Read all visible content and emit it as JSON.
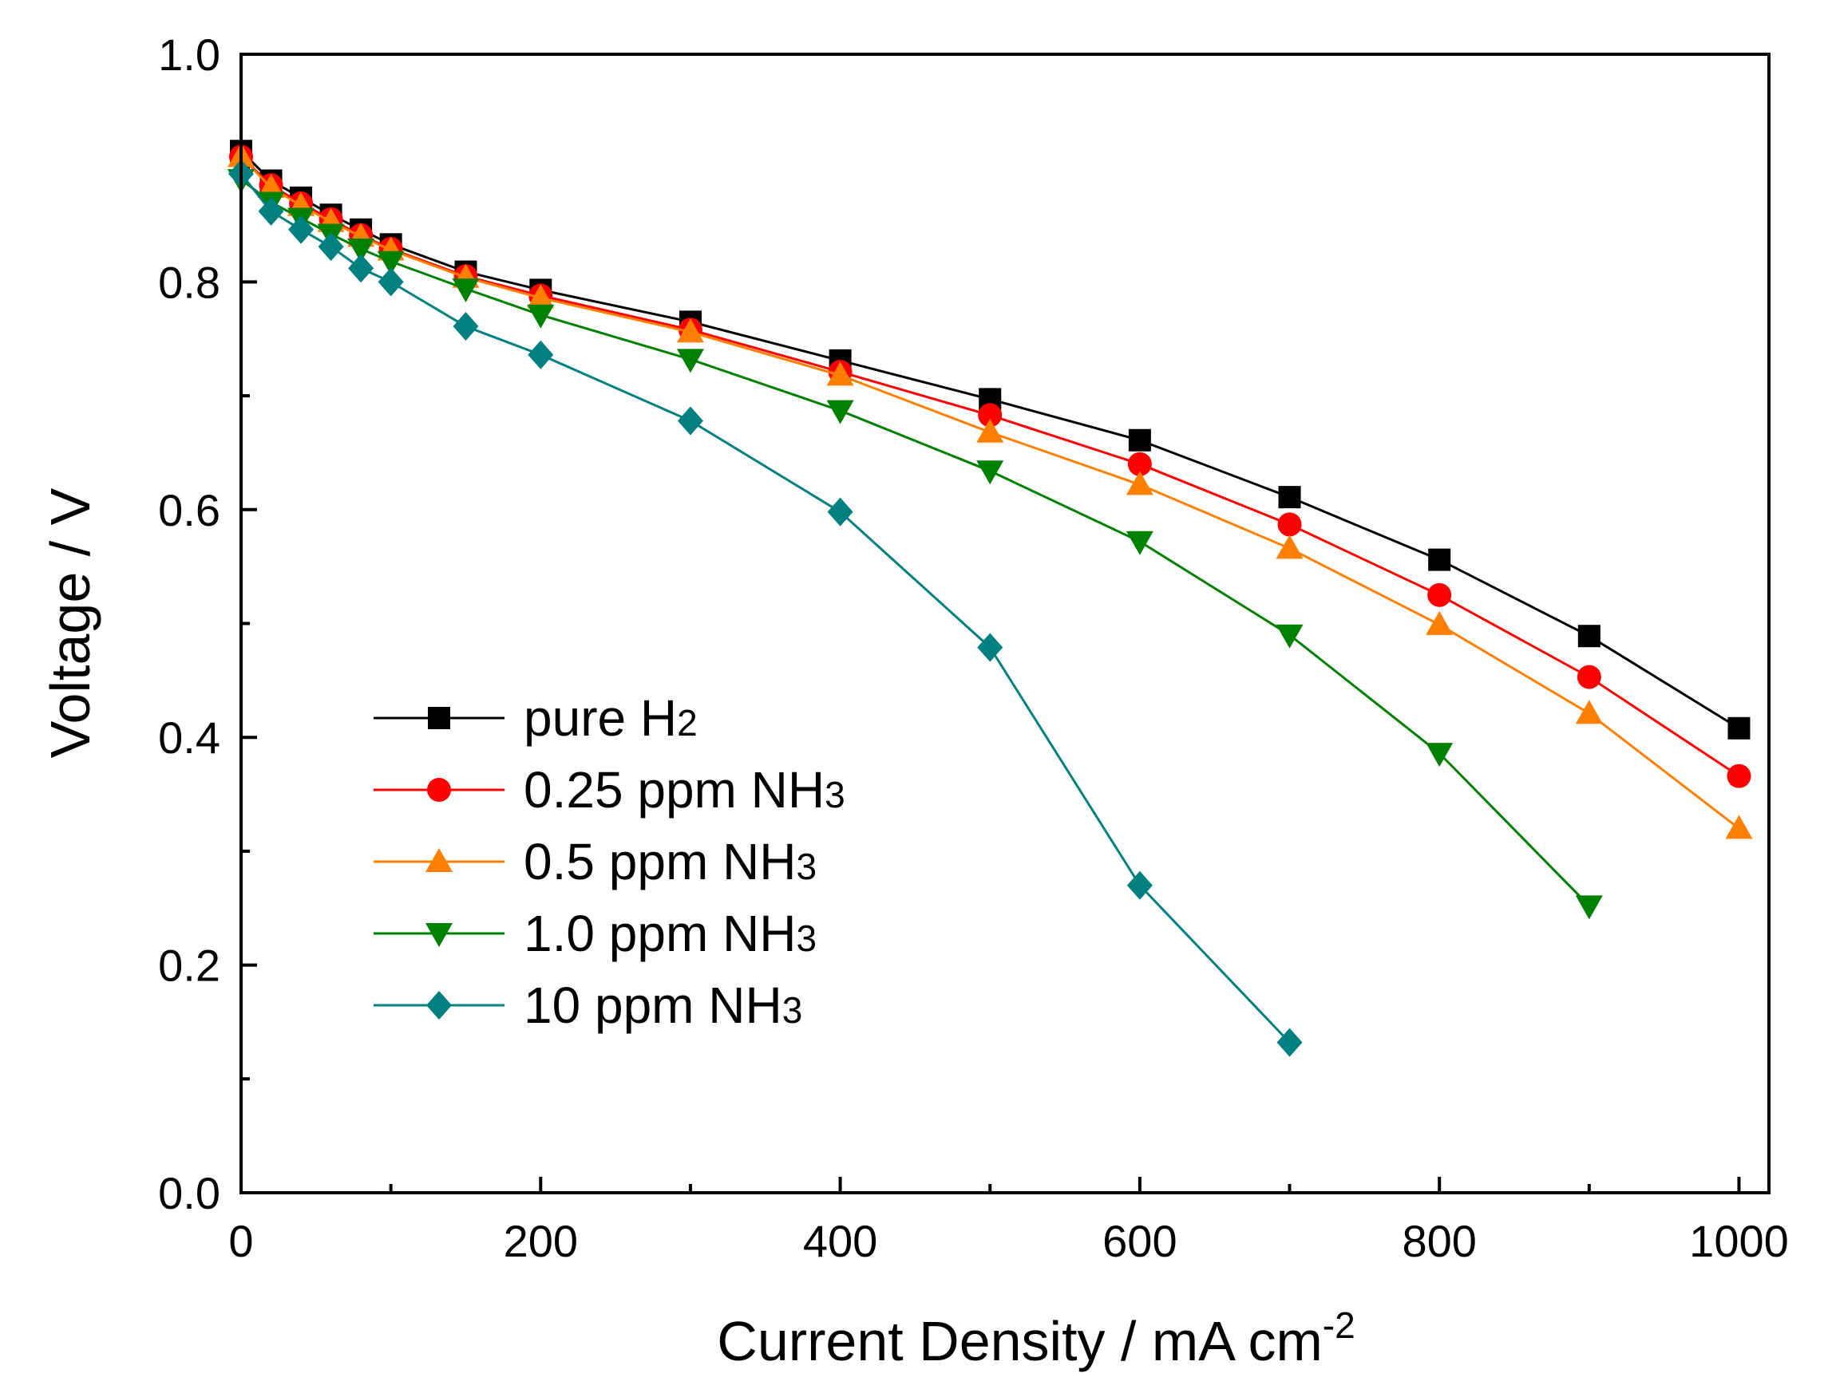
{
  "chart_data": {
    "type": "line",
    "title": "",
    "xlabel": "Current Density / mA cm",
    "xlabel_sup": "-2",
    "ylabel": "Voltage / V",
    "xlim": [
      0,
      1020
    ],
    "ylim": [
      0,
      1.0
    ],
    "xticks": [
      0,
      200,
      400,
      600,
      800,
      1000
    ],
    "xtick_labels": [
      "0",
      "200",
      "400",
      "600",
      "800",
      "1000"
    ],
    "yticks": [
      0.0,
      0.2,
      0.4,
      0.6,
      0.8,
      1.0
    ],
    "ytick_labels": [
      "0.0",
      "0.2",
      "0.4",
      "0.6",
      "0.8",
      "1.0"
    ],
    "legend_position": "lower-left",
    "series": [
      {
        "name": "pure H2",
        "label_main": "pure H",
        "label_sub": "2",
        "color": "#000000",
        "marker": "square",
        "x": [
          0,
          20,
          40,
          60,
          80,
          100,
          150,
          200,
          300,
          400,
          500,
          600,
          700,
          800,
          900,
          1000
        ],
        "y": [
          0.915,
          0.889,
          0.874,
          0.859,
          0.846,
          0.833,
          0.809,
          0.793,
          0.765,
          0.731,
          0.697,
          0.661,
          0.611,
          0.556,
          0.489,
          0.408
        ]
      },
      {
        "name": "0.25 ppm NH3",
        "label_main": "0.25 ppm NH",
        "label_sub": "3",
        "color": "#ff0000",
        "marker": "circle",
        "x": [
          0,
          20,
          40,
          60,
          80,
          100,
          150,
          200,
          300,
          400,
          500,
          600,
          700,
          800,
          900,
          1000
        ],
        "y": [
          0.91,
          0.885,
          0.869,
          0.855,
          0.841,
          0.829,
          0.805,
          0.788,
          0.758,
          0.721,
          0.683,
          0.64,
          0.587,
          0.525,
          0.453,
          0.366
        ]
      },
      {
        "name": "0.5 ppm NH3",
        "label_main": "0.5 ppm NH",
        "label_sub": "3",
        "color": "#ff8000",
        "marker": "triangle-up",
        "x": [
          0,
          20,
          40,
          60,
          80,
          100,
          150,
          200,
          300,
          400,
          500,
          600,
          700,
          800,
          900,
          1000
        ],
        "y": [
          0.91,
          0.883,
          0.867,
          0.853,
          0.84,
          0.828,
          0.804,
          0.786,
          0.756,
          0.718,
          0.668,
          0.622,
          0.566,
          0.499,
          0.421,
          0.32
        ]
      },
      {
        "name": "1.0 ppm NH3",
        "label_main": "1.0 ppm NH",
        "label_sub": "3",
        "color": "#008000",
        "marker": "triangle-down",
        "x": [
          0,
          20,
          40,
          60,
          80,
          100,
          150,
          200,
          300,
          400,
          500,
          600,
          700,
          800,
          900
        ],
        "y": [
          0.89,
          0.87,
          0.856,
          0.842,
          0.829,
          0.818,
          0.794,
          0.771,
          0.732,
          0.687,
          0.634,
          0.572,
          0.49,
          0.386,
          0.252
        ]
      },
      {
        "name": "10 ppm NH3",
        "label_main": "10 ppm NH",
        "label_sub": "3",
        "color": "#008080",
        "marker": "diamond",
        "x": [
          0,
          20,
          40,
          60,
          80,
          100,
          150,
          200,
          300,
          400,
          500,
          600,
          700
        ],
        "y": [
          0.895,
          0.862,
          0.846,
          0.831,
          0.812,
          0.8,
          0.761,
          0.736,
          0.678,
          0.598,
          0.479,
          0.27,
          0.132
        ]
      }
    ]
  }
}
